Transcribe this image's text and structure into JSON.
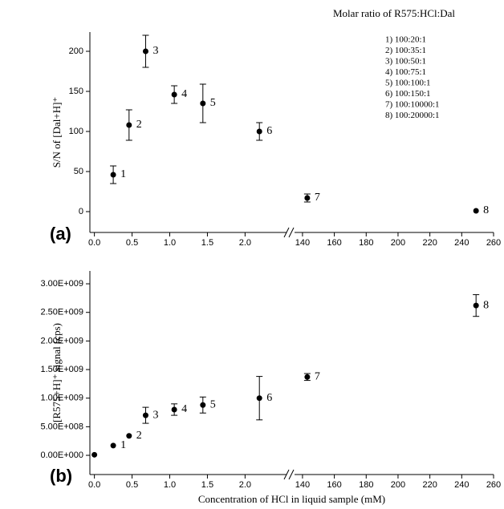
{
  "chart_data": [
    {
      "type": "scatter",
      "panel_label": "(a)",
      "ylabel": "S/N of [Dal+H]⁺",
      "annotation_title": "Molar ratio of R575:HCl:Dal",
      "annotations": [
        "1) 100:20:1",
        "2) 100:35:1",
        "3) 100:50:1",
        "4) 100:75:1",
        "5) 100:100:1",
        "6) 100:150:1",
        "7) 100:10000:1",
        "8) 100:20000:1"
      ],
      "x_segments": [
        {
          "xlim": [
            -0.06,
            2.55
          ],
          "xticks": [
            {
              "value": 0,
              "label": "0.0"
            },
            {
              "value": 0.5,
              "label": "0.5"
            },
            {
              "value": 1,
              "label": "1.0"
            },
            {
              "value": 1.5,
              "label": "1.5"
            },
            {
              "value": 2,
              "label": "2.0"
            }
          ]
        },
        {
          "xlim": [
            135,
            260
          ],
          "xticks": [
            140,
            160,
            180,
            200,
            220,
            240,
            260
          ]
        }
      ],
      "ylim": [
        -26,
        224
      ],
      "yticks": [
        0,
        50,
        100,
        150,
        200
      ],
      "series": [
        {
          "color": "#000000",
          "x": [
            0.25,
            0.46,
            0.68,
            1.06,
            1.44,
            2.19,
            143,
            249
          ],
          "values": [
            46,
            108,
            200,
            146,
            135,
            100,
            17,
            1
          ],
          "errors": [
            11,
            19,
            20,
            11,
            24,
            11,
            5,
            0
          ],
          "point_labels": [
            "1",
            "2",
            "3",
            "4",
            "5",
            "6",
            "7",
            "8"
          ]
        }
      ]
    },
    {
      "type": "scatter",
      "panel_label": "(b)",
      "ylabel": "[R575+H]⁺ signal (cps)",
      "xlabel": "Concentration of HCl in liquid sample (mM)",
      "x_segments": [
        {
          "xlim": [
            -0.06,
            2.55
          ],
          "xticks": [
            {
              "value": 0,
              "label": "0.0"
            },
            {
              "value": 0.5,
              "label": "0.5"
            },
            {
              "value": 1,
              "label": "1.0"
            },
            {
              "value": 1.5,
              "label": "1.5"
            },
            {
              "value": 2,
              "label": "2.0"
            }
          ]
        },
        {
          "xlim": [
            135,
            260
          ],
          "xticks": [
            140,
            160,
            180,
            200,
            220,
            240,
            260
          ]
        }
      ],
      "ylim": [
        -336000000,
        3225000000
      ],
      "yticks": [
        {
          "value": 0,
          "label": "0.00E+000"
        },
        {
          "value": 500000000,
          "label": "5.00E+008"
        },
        {
          "value": 1000000000,
          "label": "1.00E+009"
        },
        {
          "value": 1500000000,
          "label": "1.50E+009"
        },
        {
          "value": 2000000000,
          "label": "2.00E+009"
        },
        {
          "value": 2500000000,
          "label": "2.50E+009"
        },
        {
          "value": 3000000000,
          "label": "3.00E+009"
        }
      ],
      "series": [
        {
          "color": "#000000",
          "x": [
            0,
            0.25,
            0.46,
            0.68,
            1.06,
            1.44,
            2.19,
            143,
            249
          ],
          "values": [
            10000000,
            170000000,
            340000000,
            700000000,
            800000000,
            880000000,
            1000000000,
            1370000000,
            2620000000
          ],
          "errors": [
            0,
            0,
            0,
            140000000,
            100000000,
            140000000,
            380000000,
            60000000,
            190000000
          ],
          "point_labels": [
            null,
            "1",
            "2",
            "3",
            "4",
            "5",
            "6",
            "7",
            "8"
          ]
        }
      ]
    }
  ]
}
